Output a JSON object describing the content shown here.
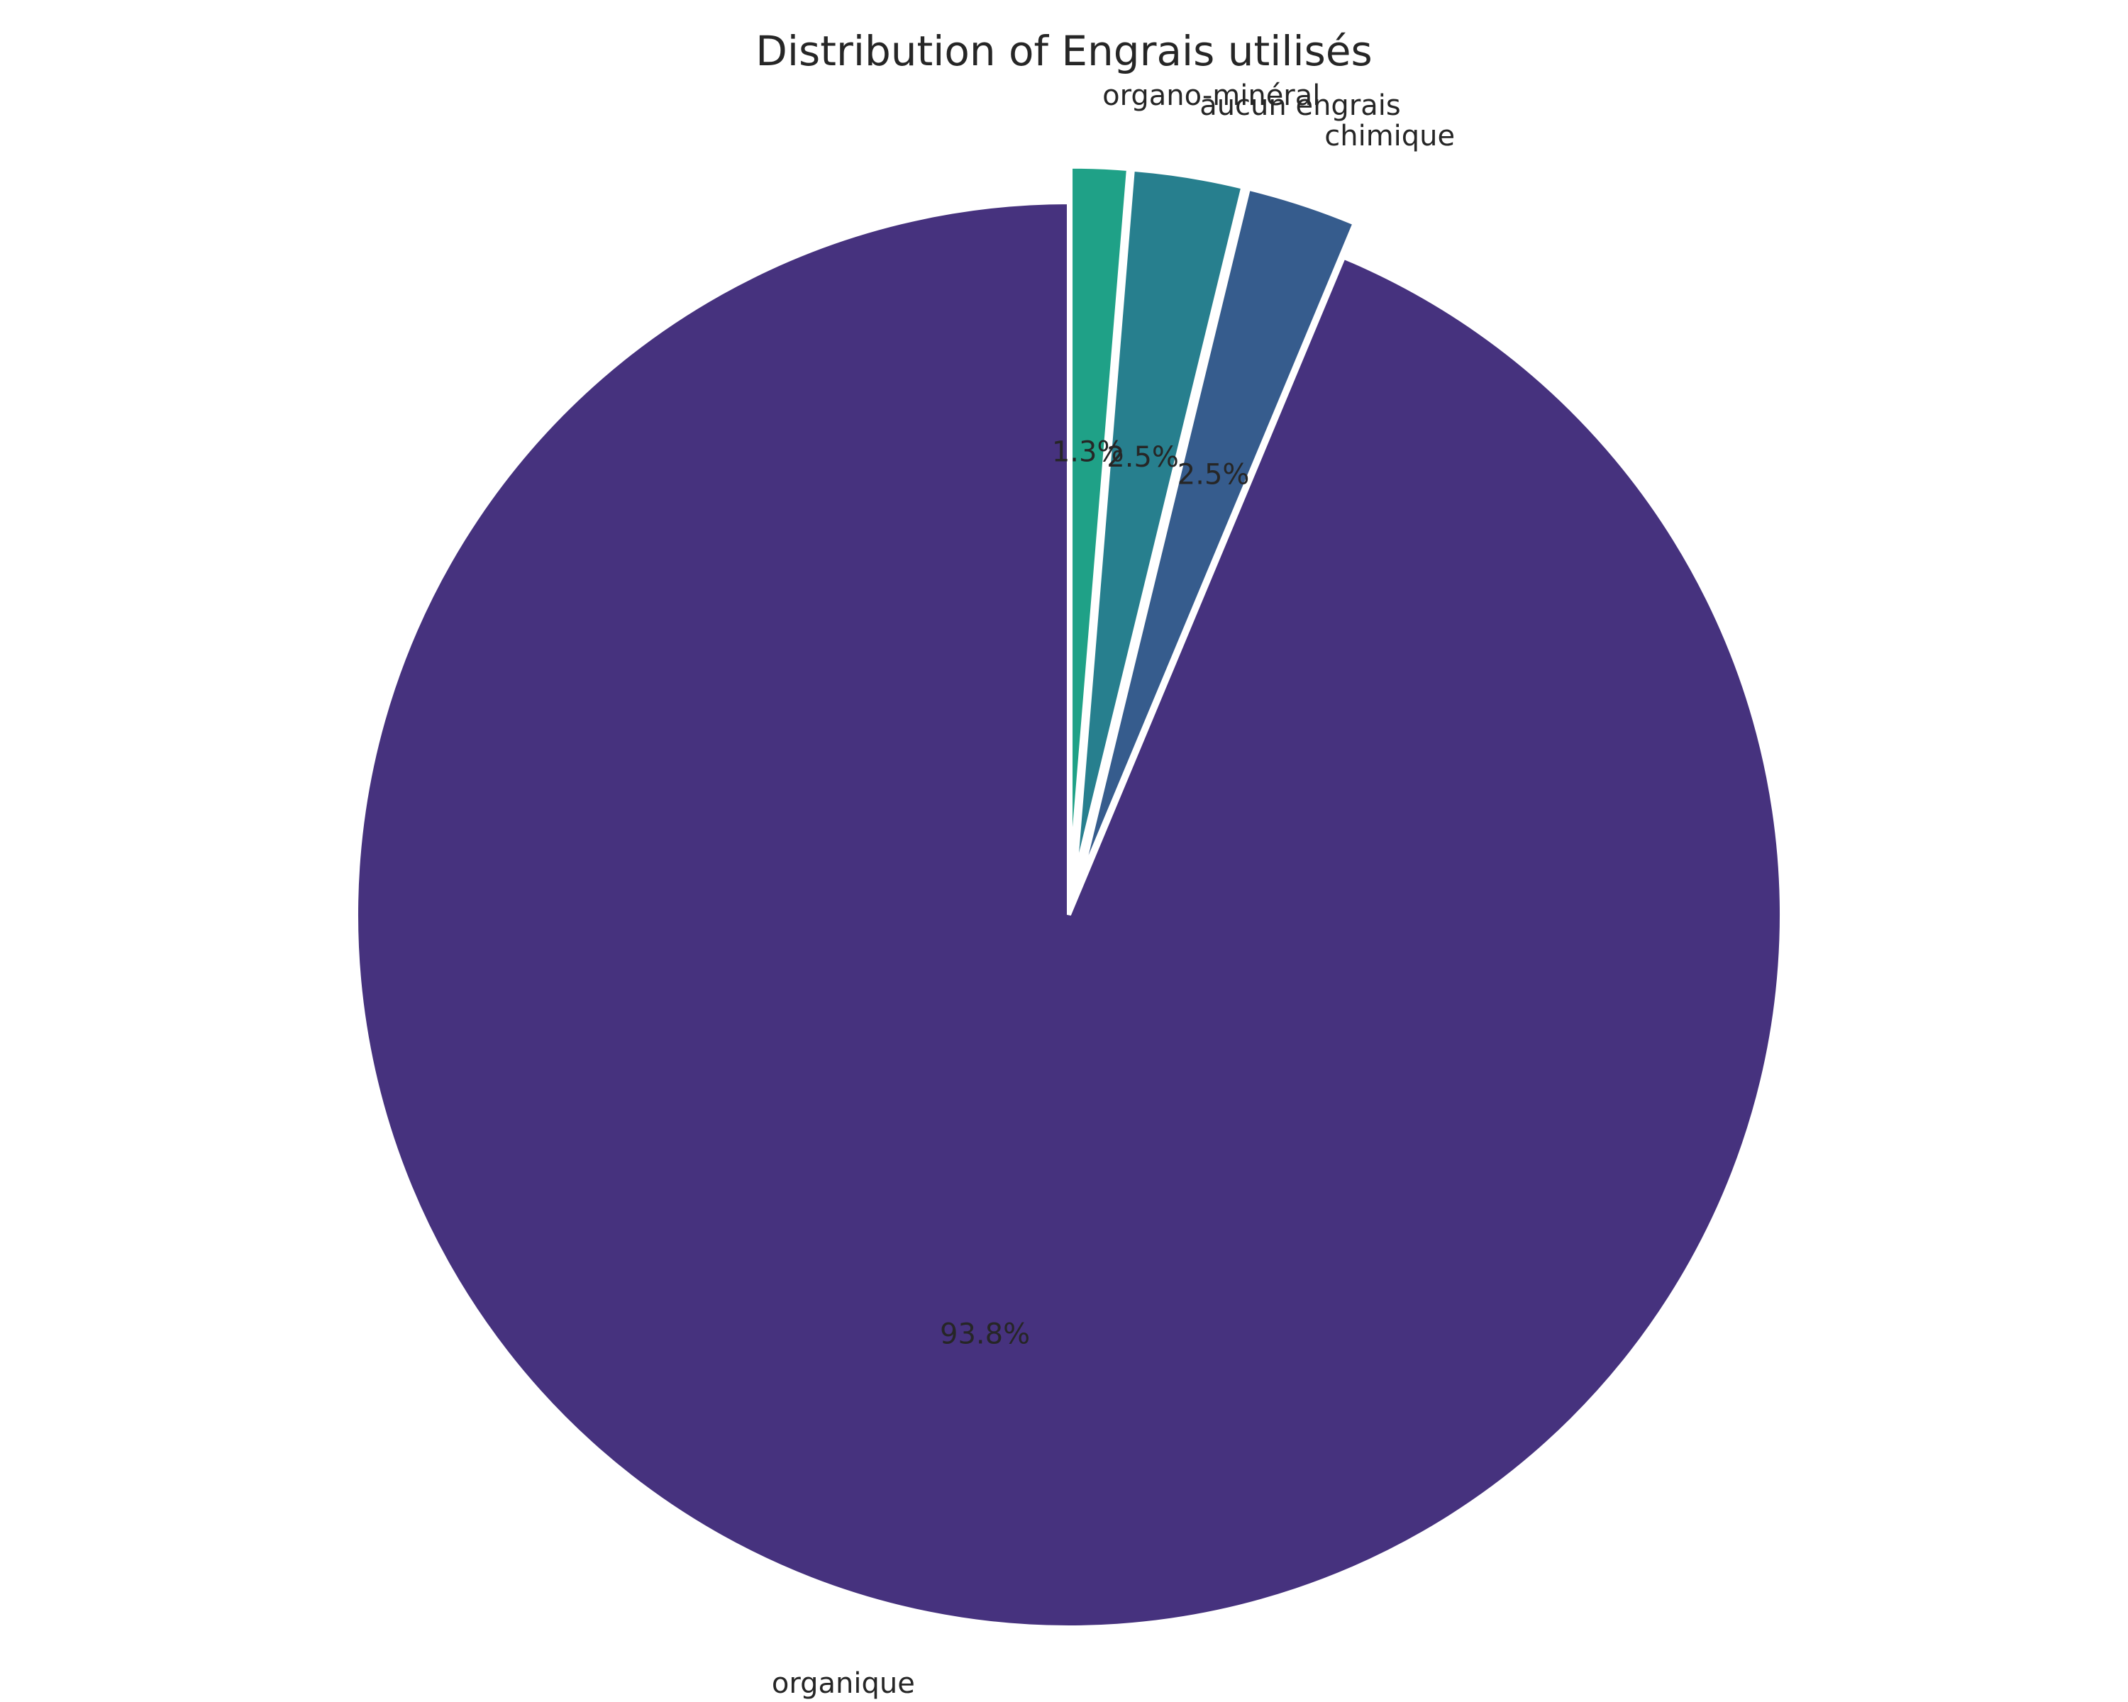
{
  "chart_data": {
    "type": "pie",
    "title": "Distribution of Engrais utilisés",
    "labels": [
      "organique",
      "chimique",
      "aucun engrais",
      "organo-minéral"
    ],
    "values": [
      93.8,
      2.5,
      2.5,
      1.3
    ],
    "percent_labels": [
      "93.8%",
      "2.5%",
      "2.5%",
      "1.3%"
    ],
    "colors": [
      "#46327e",
      "#365c8d",
      "#277f8e",
      "#1fa187"
    ],
    "exploded": [
      false,
      true,
      true,
      true
    ],
    "start_angle_deg": 90,
    "direction": "counterclockwise"
  }
}
